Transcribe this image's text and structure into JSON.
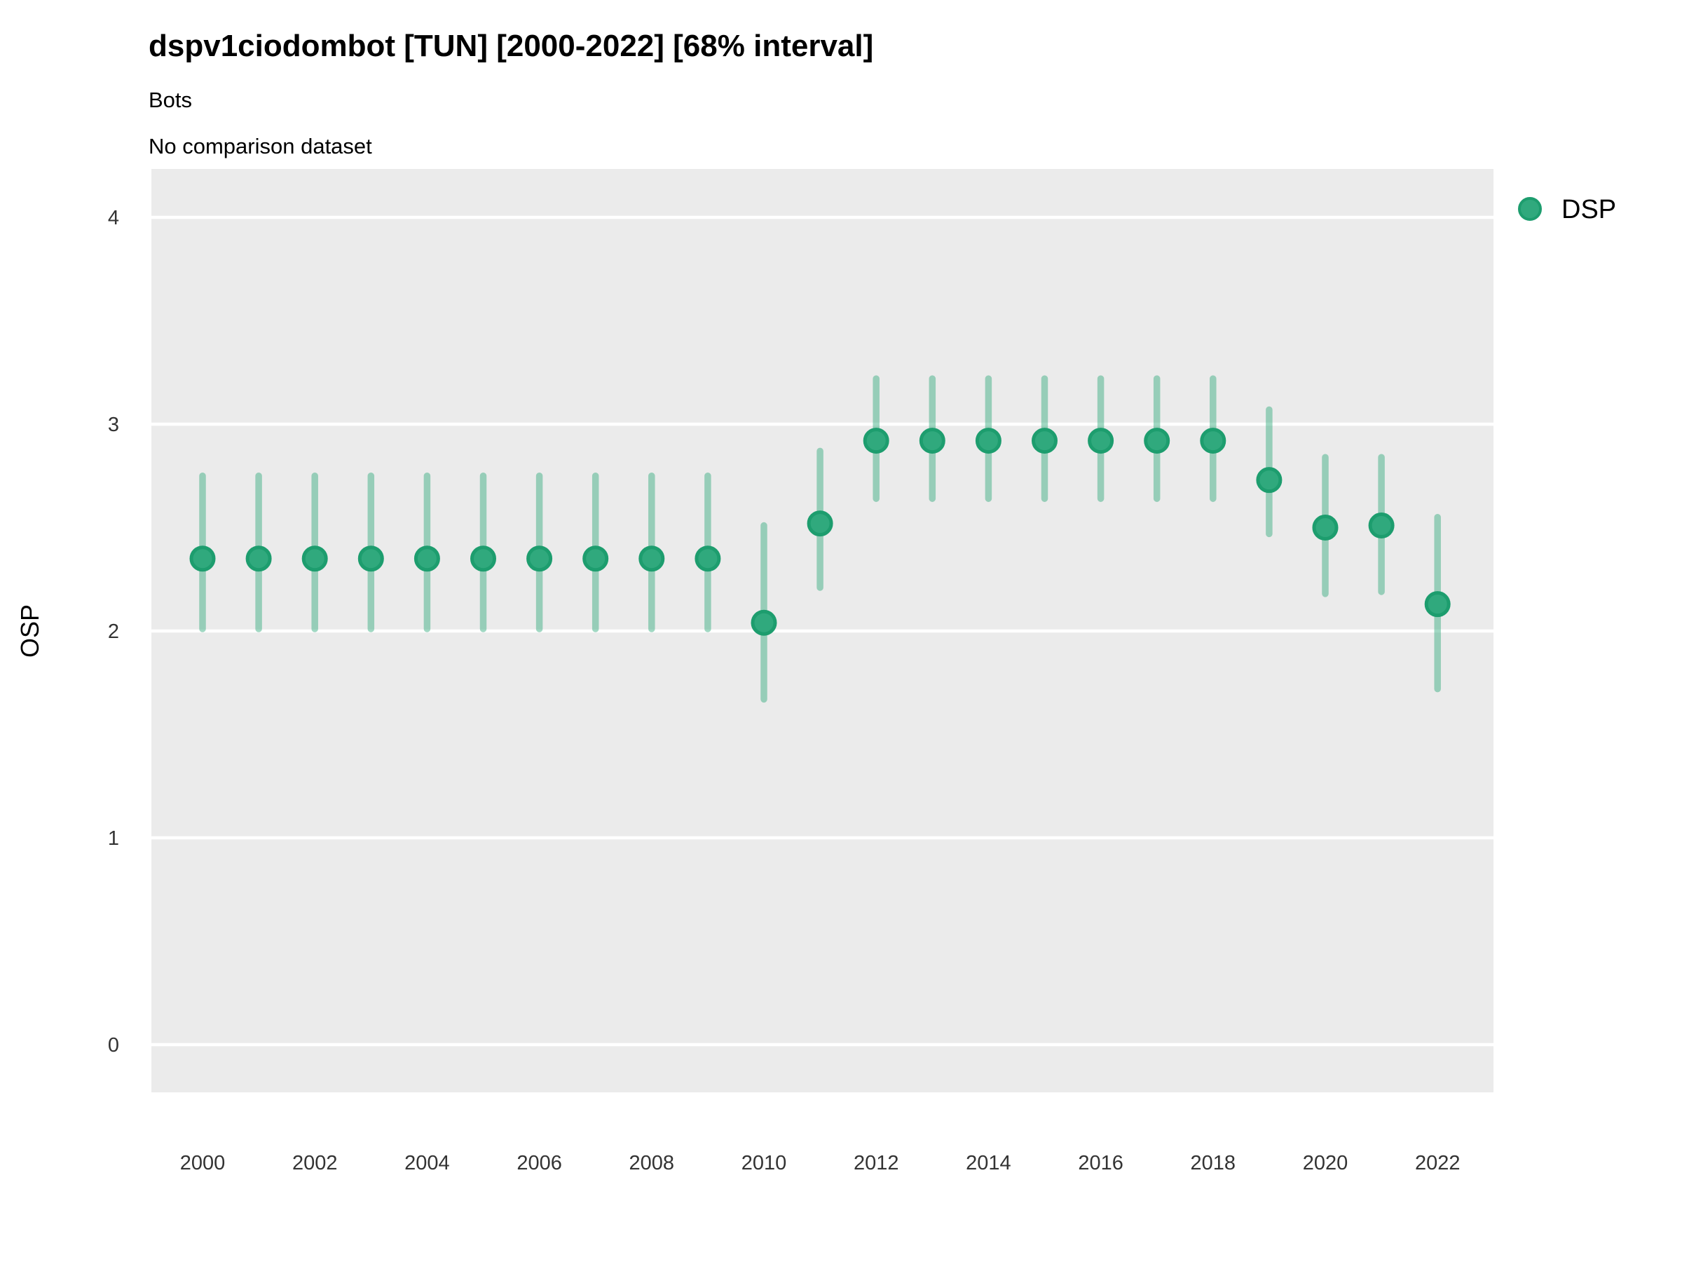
{
  "colors": {
    "point_fill": "#30A97D",
    "point_stroke": "#1D9D6E",
    "interval_line": "#2FA87B",
    "interval_opacity": 0.45,
    "panel_background": "#EBEBEB",
    "gridline": "#FFFFFF",
    "tick_label": "#333333",
    "text": "#000000"
  },
  "chart_data": {
    "type": "scatter",
    "title": "dspv1ciodombot [TUN] [2000-2022] [68% interval]",
    "subtitle": "Bots",
    "note": "No comparison dataset",
    "xlabel": "",
    "ylabel": "OSP",
    "interval_label": "68% interval",
    "grid": true,
    "legend_position": "top-right",
    "x": [
      2000,
      2001,
      2002,
      2003,
      2004,
      2005,
      2006,
      2007,
      2008,
      2009,
      2010,
      2011,
      2012,
      2013,
      2014,
      2015,
      2016,
      2017,
      2018,
      2019,
      2020,
      2021,
      2022
    ],
    "series": [
      {
        "name": "DSP",
        "values": [
          2.35,
          2.35,
          2.35,
          2.35,
          2.35,
          2.35,
          2.35,
          2.35,
          2.35,
          2.35,
          2.04,
          2.52,
          2.92,
          2.92,
          2.92,
          2.92,
          2.92,
          2.92,
          2.92,
          2.73,
          2.5,
          2.51,
          2.13
        ],
        "lower": [
          2.01,
          2.01,
          2.01,
          2.01,
          2.01,
          2.01,
          2.01,
          2.01,
          2.01,
          2.01,
          1.67,
          2.21,
          2.64,
          2.64,
          2.64,
          2.64,
          2.64,
          2.64,
          2.64,
          2.47,
          2.18,
          2.19,
          1.72
        ],
        "upper": [
          2.75,
          2.75,
          2.75,
          2.75,
          2.75,
          2.75,
          2.75,
          2.75,
          2.75,
          2.75,
          2.51,
          2.87,
          3.22,
          3.22,
          3.22,
          3.22,
          3.22,
          3.22,
          3.22,
          3.07,
          2.84,
          2.84,
          2.55
        ]
      }
    ],
    "xticks": [
      2000,
      2002,
      2004,
      2006,
      2008,
      2010,
      2012,
      2014,
      2016,
      2018,
      2020,
      2022
    ],
    "yticks": [
      0,
      1,
      2,
      3,
      4
    ],
    "ylim": [
      -0.23,
      4.23
    ]
  }
}
